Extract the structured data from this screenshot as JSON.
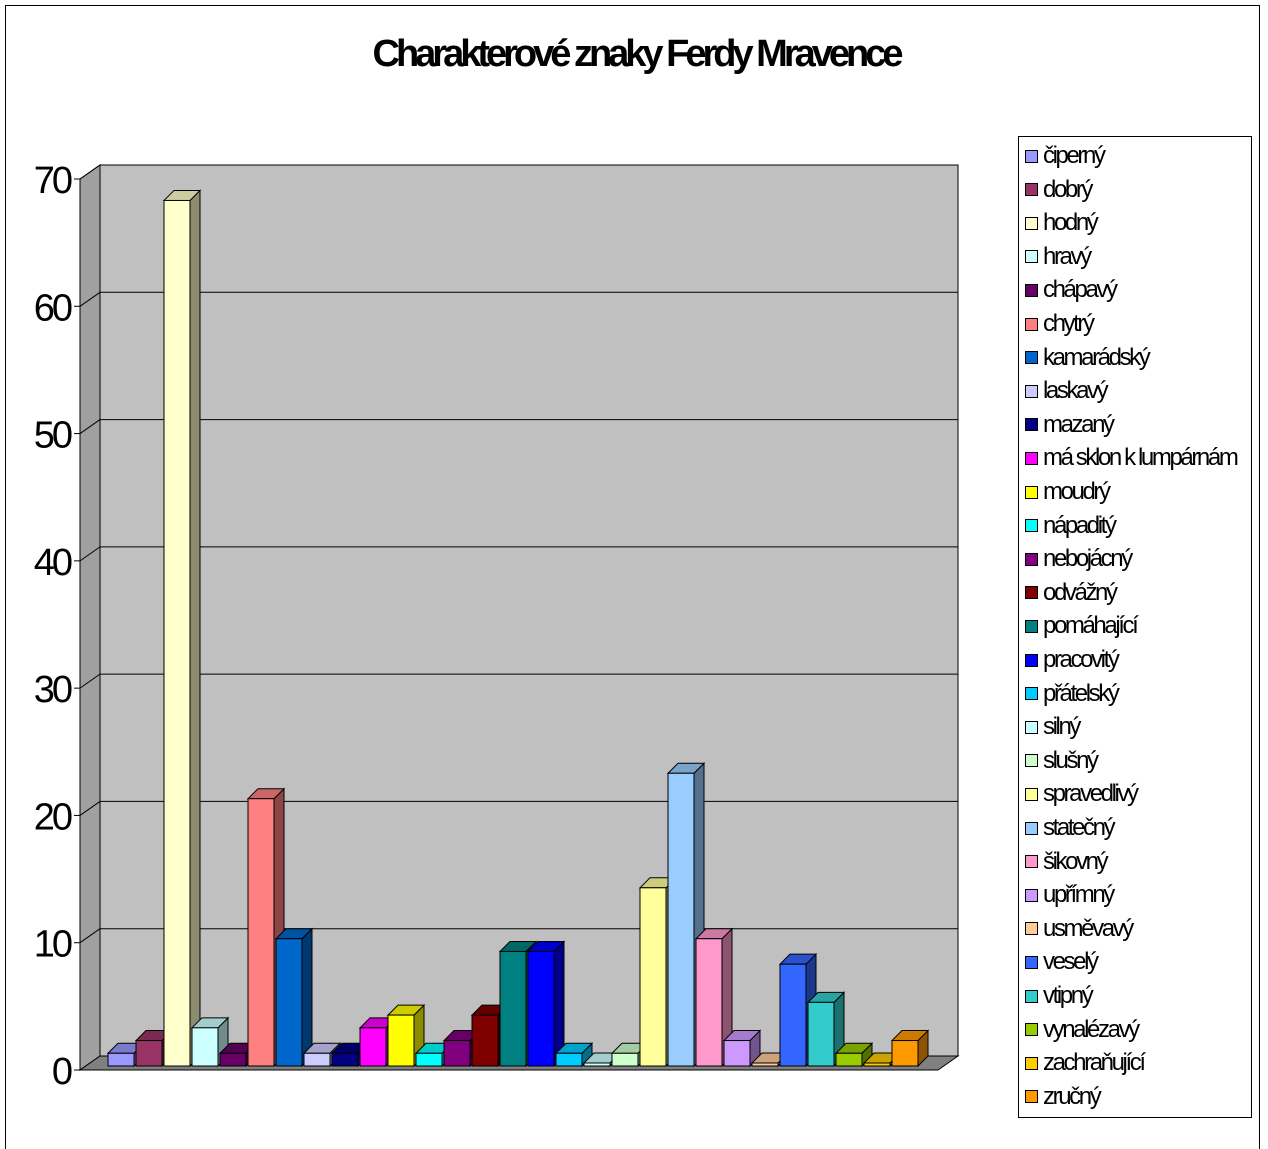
{
  "chart_data": {
    "type": "bar",
    "title": "Charakterové znaky Ferdy Mravence",
    "xlabel": "",
    "ylabel": "",
    "ylim": [
      0,
      70
    ],
    "yticks": [
      0,
      10,
      20,
      30,
      40,
      50,
      60,
      70
    ],
    "grid": true,
    "legend_position": "right",
    "plot_background": "#c0c0c0",
    "series": [
      {
        "name": "čiperný",
        "value": 1,
        "color": "#9999ff"
      },
      {
        "name": "dobrý",
        "value": 2,
        "color": "#993366"
      },
      {
        "name": "hodný",
        "value": 68,
        "color": "#ffffcc"
      },
      {
        "name": "hravý",
        "value": 3,
        "color": "#ccffff"
      },
      {
        "name": "chápavý",
        "value": 1,
        "color": "#660066"
      },
      {
        "name": "chytrý",
        "value": 21,
        "color": "#ff8080"
      },
      {
        "name": "kamarádský",
        "value": 10,
        "color": "#0066cc"
      },
      {
        "name": "laskavý",
        "value": 1,
        "color": "#ccccff"
      },
      {
        "name": "mazaný",
        "value": 1,
        "color": "#000080"
      },
      {
        "name": "má sklon k lumpárnám",
        "value": 3,
        "color": "#ff00ff"
      },
      {
        "name": "moudrý",
        "value": 4,
        "color": "#ffff00"
      },
      {
        "name": "nápaditý",
        "value": 1,
        "color": "#00ffff"
      },
      {
        "name": "nebojácný",
        "value": 2,
        "color": "#800080"
      },
      {
        "name": "odvážný",
        "value": 4,
        "color": "#800000"
      },
      {
        "name": "pomáhající",
        "value": 9,
        "color": "#008080"
      },
      {
        "name": "pracovitý",
        "value": 9,
        "color": "#0000ff"
      },
      {
        "name": "přátelský",
        "value": 1,
        "color": "#00ccff"
      },
      {
        "name": "silný",
        "value": 0,
        "color": "#ccffff"
      },
      {
        "name": "slušný",
        "value": 1,
        "color": "#ccffcc"
      },
      {
        "name": "spravedlivý",
        "value": 14,
        "color": "#ffff99"
      },
      {
        "name": "statečný",
        "value": 23,
        "color": "#99ccff"
      },
      {
        "name": "šikovný",
        "value": 10,
        "color": "#ff99cc"
      },
      {
        "name": "upřímný",
        "value": 2,
        "color": "#cc99ff"
      },
      {
        "name": "usměvavý",
        "value": 0,
        "color": "#ffcc99"
      },
      {
        "name": "veselý",
        "value": 8,
        "color": "#3366ff"
      },
      {
        "name": "vtipný",
        "value": 5,
        "color": "#33cccc"
      },
      {
        "name": "vynalézavý",
        "value": 1,
        "color": "#99cc00"
      },
      {
        "name": "zachraňující",
        "value": 0,
        "color": "#ffcc00"
      },
      {
        "name": "zručný",
        "value": 2,
        "color": "#ff9900"
      }
    ]
  }
}
